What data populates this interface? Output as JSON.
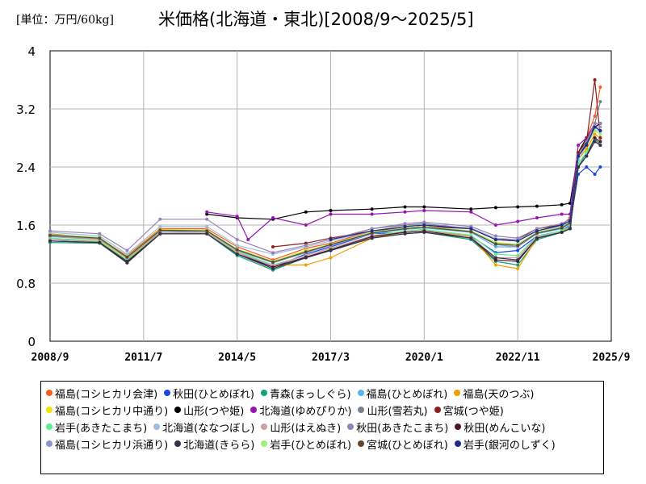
{
  "header": {
    "unit": "[単位：万円/60kg]",
    "title": "米価格(北海道・東北)[2008/9～2025/5]"
  },
  "chart_data": {
    "type": "line",
    "x_ticks": [
      "2008/9",
      "2011/7",
      "2014/5",
      "2017/3",
      "2020/1",
      "2022/11",
      "2025/9"
    ],
    "y_ticks": [
      "0",
      "0.8",
      "1.6",
      "2.4",
      "3.2",
      "4"
    ],
    "ylim": [
      0,
      4
    ],
    "xlim": [
      "2008/9",
      "2025/9"
    ],
    "grid": true,
    "legend_placement": "bottom",
    "series": [
      {
        "name": "福島(コシヒカリ会津)",
        "color": "#ff5a1e",
        "x": [
          "2008/9",
          "2010/3",
          "2011/1",
          "2012/1",
          "2013/6",
          "2014/5",
          "2015/6",
          "2016/6",
          "2017/3",
          "2018/6",
          "2019/6",
          "2020/1",
          "2021/6",
          "2022/3",
          "2022/11",
          "2023/6",
          "2024/3",
          "2024/6",
          "2024/9",
          "2024/12",
          "2025/3",
          "2025/5"
        ],
        "y": [
          1.48,
          1.42,
          1.18,
          1.55,
          1.55,
          1.3,
          1.12,
          1.28,
          1.35,
          1.52,
          1.58,
          1.6,
          1.55,
          1.4,
          1.38,
          1.52,
          1.6,
          1.7,
          2.6,
          2.8,
          3.1,
          3.5
        ]
      },
      {
        "name": "秋田(ひとめぼれ)",
        "color": "#1e46e6",
        "x": [
          "2008/9",
          "2010/3",
          "2011/1",
          "2012/1",
          "2013/6",
          "2014/5",
          "2015/6",
          "2016/6",
          "2017/3",
          "2018/6",
          "2019/6",
          "2020/1",
          "2021/6",
          "2022/3",
          "2022/11",
          "2023/6",
          "2024/3",
          "2024/6",
          "2024/9",
          "2024/12",
          "2025/3",
          "2025/5"
        ],
        "y": [
          1.4,
          1.38,
          1.1,
          1.52,
          1.5,
          1.22,
          1.02,
          1.2,
          1.3,
          1.48,
          1.5,
          1.52,
          1.45,
          1.22,
          1.25,
          1.45,
          1.52,
          1.6,
          2.3,
          2.4,
          2.3,
          2.4
        ]
      },
      {
        "name": "青森(まっしぐら)",
        "color": "#14a078",
        "x": [
          "2008/9",
          "2010/3",
          "2011/1",
          "2012/1",
          "2013/6",
          "2014/5",
          "2015/6",
          "2016/6",
          "2017/3",
          "2018/6",
          "2019/6",
          "2020/1",
          "2021/6",
          "2022/3",
          "2022/11",
          "2023/6",
          "2024/3",
          "2024/6",
          "2024/9",
          "2024/12",
          "2025/3",
          "2025/5"
        ],
        "y": [
          1.36,
          1.35,
          1.08,
          1.48,
          1.48,
          1.18,
          0.98,
          1.15,
          1.25,
          1.42,
          1.48,
          1.5,
          1.4,
          1.1,
          1.05,
          1.4,
          1.5,
          1.55,
          2.4,
          2.6,
          2.8,
          2.7
        ]
      },
      {
        "name": "福島(ひとめぼれ)",
        "color": "#5ab4f0",
        "x": [
          "2008/9",
          "2010/3",
          "2011/1",
          "2012/1",
          "2013/6",
          "2014/5",
          "2015/6",
          "2016/6",
          "2017/3",
          "2018/6",
          "2019/6",
          "2020/1",
          "2021/6",
          "2022/3",
          "2022/11",
          "2023/6",
          "2024/3",
          "2024/6",
          "2024/9",
          "2024/12",
          "2025/3",
          "2025/5"
        ],
        "y": [
          1.44,
          1.4,
          1.15,
          1.52,
          1.52,
          1.25,
          1.08,
          1.22,
          1.32,
          1.48,
          1.54,
          1.56,
          1.5,
          1.3,
          1.3,
          1.48,
          1.55,
          1.62,
          2.55,
          2.7,
          2.9,
          2.9
        ]
      },
      {
        "name": "福島(天のつぶ)",
        "color": "#f0a000",
        "x": [
          "2008/9",
          "2010/3",
          "2011/1",
          "2012/1",
          "2013/6",
          "2014/5",
          "2015/6",
          "2016/6",
          "2017/3",
          "2018/6",
          "2019/6",
          "2020/1",
          "2021/6",
          "2022/3",
          "2022/11",
          "2023/6",
          "2024/3",
          "2024/6",
          "2024/9",
          "2024/12",
          "2025/3",
          "2025/5"
        ],
        "y": [
          1.45,
          1.4,
          1.14,
          1.5,
          1.5,
          1.22,
          1.05,
          1.05,
          1.15,
          1.42,
          1.5,
          1.52,
          1.45,
          1.05,
          1.0,
          1.42,
          1.5,
          1.58,
          2.5,
          2.65,
          2.85,
          2.8
        ]
      },
      {
        "name": "福島(コシヒカリ中通り)",
        "color": "#f0e600",
        "x": [
          "2008/9",
          "2010/3",
          "2011/1",
          "2012/1",
          "2013/6",
          "2014/5",
          "2015/6",
          "2016/6",
          "2017/3",
          "2018/6",
          "2019/6",
          "2020/1",
          "2021/6",
          "2022/3",
          "2022/11",
          "2023/6",
          "2024/3",
          "2024/6",
          "2024/9",
          "2024/12",
          "2025/3",
          "2025/5"
        ],
        "y": [
          1.46,
          1.42,
          1.16,
          1.54,
          1.53,
          1.26,
          1.1,
          1.25,
          1.33,
          1.5,
          1.56,
          1.58,
          1.52,
          1.35,
          1.32,
          1.5,
          1.58,
          1.65,
          2.6,
          2.75,
          3.0,
          3.0
        ]
      },
      {
        "name": "山形(つや姫)",
        "color": "#000000",
        "x": [
          "2013/6",
          "2014/5",
          "2015/6",
          "2016/6",
          "2017/3",
          "2018/6",
          "2019/6",
          "2020/1",
          "2021/6",
          "2022/3",
          "2022/11",
          "2023/6",
          "2024/3",
          "2024/6",
          "2024/9",
          "2024/12",
          "2025/3",
          "2025/5"
        ],
        "y": [
          1.75,
          1.7,
          1.68,
          1.78,
          1.8,
          1.82,
          1.85,
          1.85,
          1.82,
          1.84,
          1.85,
          1.86,
          1.88,
          1.9,
          2.6,
          2.8,
          2.95,
          3.0
        ]
      },
      {
        "name": "北海道(ゆめぴりか)",
        "color": "#9614b4",
        "x": [
          "2013/6",
          "2014/5",
          "2014/9",
          "2015/6",
          "2016/6",
          "2017/3",
          "2018/6",
          "2019/6",
          "2020/1",
          "2021/6",
          "2022/3",
          "2022/11",
          "2023/6",
          "2024/3",
          "2024/6",
          "2024/9",
          "2024/12",
          "2025/3",
          "2025/5"
        ],
        "y": [
          1.78,
          1.72,
          1.4,
          1.7,
          1.6,
          1.75,
          1.75,
          1.78,
          1.8,
          1.78,
          1.6,
          1.65,
          1.7,
          1.75,
          1.75,
          2.7,
          2.8,
          3.0,
          3.0
        ]
      },
      {
        "name": "山形(雪若丸)",
        "color": "#78828c",
        "x": [
          "2018/6",
          "2019/6",
          "2020/1",
          "2021/6",
          "2022/3",
          "2022/11",
          "2023/6",
          "2024/3",
          "2024/6",
          "2024/9",
          "2024/12",
          "2025/3",
          "2025/5"
        ],
        "y": [
          1.55,
          1.6,
          1.62,
          1.55,
          1.4,
          1.4,
          1.55,
          1.6,
          1.65,
          2.6,
          2.75,
          3.0,
          3.3
        ]
      },
      {
        "name": "宮城(つや姫)",
        "color": "#8c1e1e",
        "x": [
          "2015/6",
          "2016/6",
          "2017/3",
          "2018/6",
          "2019/6",
          "2020/1",
          "2021/6",
          "2022/3",
          "2022/11",
          "2023/6",
          "2024/3",
          "2024/6",
          "2024/9",
          "2024/12",
          "2025/3",
          "2025/5"
        ],
        "y": [
          1.3,
          1.35,
          1.42,
          1.52,
          1.56,
          1.58,
          1.55,
          1.4,
          1.4,
          1.55,
          1.6,
          1.65,
          2.6,
          2.75,
          3.6,
          2.8
        ]
      },
      {
        "name": "岩手(あきたこまち)",
        "color": "#5af08c",
        "x": [
          "2008/9",
          "2010/3",
          "2011/1",
          "2012/1",
          "2013/6",
          "2014/5",
          "2015/6",
          "2016/6",
          "2017/3",
          "2018/6",
          "2019/6",
          "2020/1",
          "2021/6",
          "2022/3",
          "2022/11",
          "2023/6",
          "2024/3",
          "2024/6",
          "2024/9",
          "2024/12",
          "2025/3",
          "2025/5"
        ],
        "y": [
          1.42,
          1.38,
          1.12,
          1.5,
          1.5,
          1.24,
          1.05,
          1.18,
          1.28,
          1.45,
          1.52,
          1.54,
          1.46,
          1.2,
          1.18,
          1.45,
          1.52,
          1.58,
          2.45,
          2.6,
          2.8,
          2.75
        ]
      },
      {
        "name": "北海道(ななつぼし)",
        "color": "#a0bedc",
        "x": [
          "2008/9",
          "2010/3",
          "2011/1",
          "2012/1",
          "2013/6",
          "2014/5",
          "2015/6",
          "2016/6",
          "2017/3",
          "2018/6",
          "2019/6",
          "2020/1",
          "2021/6",
          "2022/3",
          "2022/11",
          "2023/6",
          "2024/3",
          "2024/6",
          "2024/9",
          "2024/12",
          "2025/3",
          "2025/5"
        ],
        "y": [
          1.5,
          1.45,
          1.2,
          1.58,
          1.58,
          1.32,
          1.2,
          1.3,
          1.38,
          1.52,
          1.58,
          1.6,
          1.56,
          1.42,
          1.4,
          1.52,
          1.58,
          1.65,
          2.5,
          2.7,
          2.9,
          2.9
        ]
      },
      {
        "name": "山形(はえぬき)",
        "color": "#d2a0a0",
        "x": [
          "2008/9",
          "2010/3",
          "2011/1",
          "2012/1",
          "2013/6",
          "2014/5",
          "2015/6",
          "2016/6",
          "2017/3",
          "2018/6",
          "2019/6",
          "2020/1",
          "2021/6",
          "2022/3",
          "2022/11",
          "2023/6",
          "2024/3",
          "2024/6",
          "2024/9",
          "2024/12",
          "2025/3",
          "2025/5"
        ],
        "y": [
          1.4,
          1.37,
          1.1,
          1.5,
          1.5,
          1.22,
          1.04,
          1.18,
          1.28,
          1.45,
          1.5,
          1.52,
          1.44,
          1.15,
          1.15,
          1.44,
          1.5,
          1.56,
          2.4,
          2.55,
          2.75,
          2.7
        ]
      },
      {
        "name": "秋田(あきたこまち)",
        "color": "#9682b4",
        "x": [
          "2008/9",
          "2010/3",
          "2011/1",
          "2012/1",
          "2013/6",
          "2014/5",
          "2015/6",
          "2016/6",
          "2017/3",
          "2018/6",
          "2019/6",
          "2020/1",
          "2021/6",
          "2022/3",
          "2022/11",
          "2023/6",
          "2024/3",
          "2024/6",
          "2024/9",
          "2024/12",
          "2025/3",
          "2025/5"
        ],
        "y": [
          1.52,
          1.48,
          1.25,
          1.68,
          1.68,
          1.4,
          1.22,
          1.32,
          1.4,
          1.55,
          1.62,
          1.64,
          1.58,
          1.45,
          1.42,
          1.55,
          1.62,
          1.68,
          2.55,
          2.75,
          3.0,
          3.0
        ]
      },
      {
        "name": "秋田(めんこいな)",
        "color": "#501432",
        "x": [
          "2008/9",
          "2010/3",
          "2011/1",
          "2012/1",
          "2013/6",
          "2014/5",
          "2015/6",
          "2016/6",
          "2017/3",
          "2018/6",
          "2019/6",
          "2020/1",
          "2021/6",
          "2022/3",
          "2022/11",
          "2023/6",
          "2024/3",
          "2024/6",
          "2024/9",
          "2024/12",
          "2025/3",
          "2025/5"
        ],
        "y": [
          1.38,
          1.36,
          1.08,
          1.48,
          1.48,
          1.2,
          1.02,
          1.16,
          1.26,
          1.44,
          1.5,
          1.52,
          1.42,
          1.12,
          1.1,
          1.42,
          1.5,
          1.55,
          2.4,
          2.55,
          2.8,
          2.75
        ]
      },
      {
        "name": "福島(コシヒカリ浜通り)",
        "color": "#8c96c8",
        "x": [
          "2008/9",
          "2010/3",
          "2011/1",
          "2012/1",
          "2013/6",
          "2014/5",
          "2015/6",
          "2016/6",
          "2017/3",
          "2018/6",
          "2019/6",
          "2020/1",
          "2021/6",
          "2022/3",
          "2022/11",
          "2023/6",
          "2024/3",
          "2024/6",
          "2024/9",
          "2024/12",
          "2025/3",
          "2025/5"
        ],
        "y": [
          1.45,
          1.41,
          1.15,
          1.52,
          1.52,
          1.25,
          1.08,
          1.22,
          1.32,
          1.49,
          1.55,
          1.57,
          1.51,
          1.33,
          1.3,
          1.49,
          1.56,
          1.63,
          2.55,
          2.7,
          2.95,
          2.95
        ]
      },
      {
        "name": "北海道(きらら)",
        "color": "#323246",
        "x": [
          "2008/9",
          "2010/3",
          "2011/1",
          "2012/1",
          "2013/6",
          "2014/5",
          "2015/6",
          "2016/6",
          "2017/3",
          "2018/6",
          "2019/6",
          "2020/1",
          "2021/6",
          "2022/3",
          "2022/11",
          "2023/6",
          "2024/3",
          "2024/6",
          "2024/9",
          "2024/12",
          "2025/3",
          "2025/5"
        ],
        "y": [
          1.38,
          1.36,
          1.1,
          1.48,
          1.48,
          1.2,
          1.0,
          1.15,
          1.25,
          1.42,
          1.48,
          1.5,
          1.42,
          1.15,
          1.12,
          1.42,
          1.5,
          1.55,
          2.4,
          2.55,
          2.75,
          2.7
        ]
      },
      {
        "name": "岩手(ひとめぼれ)",
        "color": "#a0f078",
        "x": [
          "2008/9",
          "2010/3",
          "2011/1",
          "2012/1",
          "2013/6",
          "2014/5",
          "2015/6",
          "2016/6",
          "2017/3",
          "2018/6",
          "2019/6",
          "2020/1",
          "2021/6",
          "2022/3",
          "2022/11",
          "2023/6",
          "2024/3",
          "2024/6",
          "2024/9",
          "2024/12",
          "2025/3",
          "2025/5"
        ],
        "y": [
          1.47,
          1.43,
          1.17,
          1.53,
          1.53,
          1.27,
          1.1,
          1.24,
          1.34,
          1.5,
          1.56,
          1.58,
          1.52,
          1.36,
          1.34,
          1.5,
          1.57,
          1.64,
          2.55,
          2.72,
          2.9,
          2.85
        ]
      },
      {
        "name": "宮城(ひとめぼれ)",
        "color": "#64462d",
        "x": [
          "2008/9",
          "2010/3",
          "2011/1",
          "2012/1",
          "2013/6",
          "2014/5",
          "2015/6",
          "2016/6",
          "2017/3",
          "2018/6",
          "2019/6",
          "2020/1",
          "2021/6",
          "2022/3",
          "2022/11",
          "2023/6",
          "2024/3",
          "2024/6",
          "2024/9",
          "2024/12",
          "2025/3",
          "2025/5"
        ],
        "y": [
          1.46,
          1.42,
          1.16,
          1.53,
          1.52,
          1.26,
          1.09,
          1.23,
          1.33,
          1.49,
          1.55,
          1.57,
          1.51,
          1.34,
          1.32,
          1.49,
          1.56,
          1.63,
          2.55,
          2.72,
          2.95,
          2.9
        ]
      },
      {
        "name": "岩手(銀河のしずく)",
        "color": "#1e2d8c",
        "x": [
          "2017/3",
          "2018/6",
          "2019/6",
          "2020/1",
          "2021/6",
          "2022/3",
          "2022/11",
          "2023/6",
          "2024/3",
          "2024/6",
          "2024/9",
          "2024/12",
          "2025/3",
          "2025/5"
        ],
        "y": [
          1.4,
          1.52,
          1.58,
          1.6,
          1.55,
          1.4,
          1.38,
          1.52,
          1.6,
          1.66,
          2.55,
          2.7,
          2.95,
          2.9
        ]
      }
    ]
  }
}
